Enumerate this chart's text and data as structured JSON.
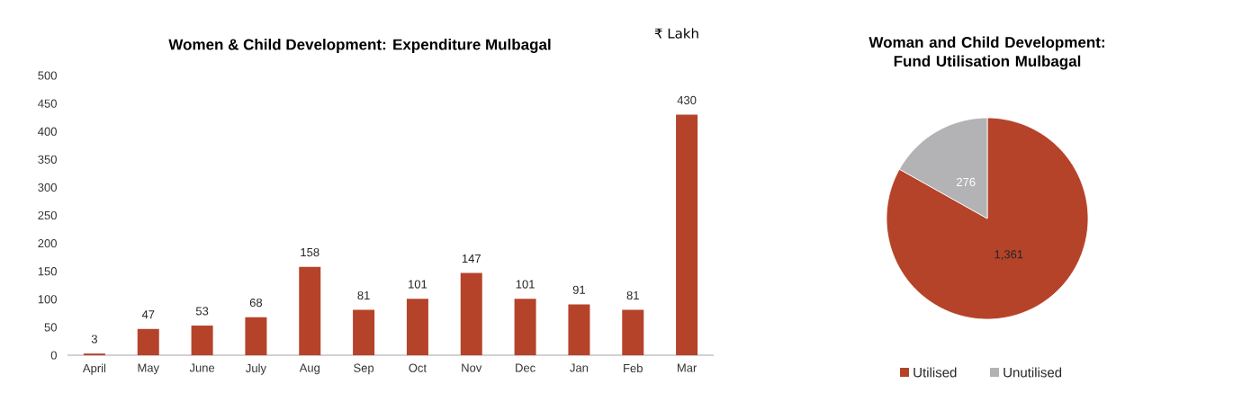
{
  "chart_data": [
    {
      "type": "bar",
      "title": "Women & Child Development: Expenditure Mulbagal",
      "categories": [
        "April",
        "May",
        "June",
        "July",
        "Aug",
        "Sep",
        "Oct",
        "Nov",
        "Dec",
        "Jan",
        "Feb",
        "Mar"
      ],
      "values": [
        3,
        47,
        53,
        68,
        158,
        81,
        101,
        147,
        101,
        91,
        81,
        430
      ],
      "color": "#b5432a",
      "ylim": [
        0,
        500
      ],
      "yticks": [
        0,
        50,
        100,
        150,
        200,
        250,
        300,
        350,
        400,
        450,
        500
      ],
      "data_labels": true,
      "annotations": [
        "₹ Lakh"
      ]
    },
    {
      "type": "pie",
      "title": "Woman and Child Development: Fund Utilisation Mulbagal",
      "categories": [
        "Utilised",
        "Unutilised"
      ],
      "values": [
        1361,
        276
      ],
      "colors": [
        "#b5432a",
        "#b3b3b5"
      ],
      "value_labels": [
        "1,361",
        "276"
      ],
      "legend": "bottom"
    }
  ]
}
